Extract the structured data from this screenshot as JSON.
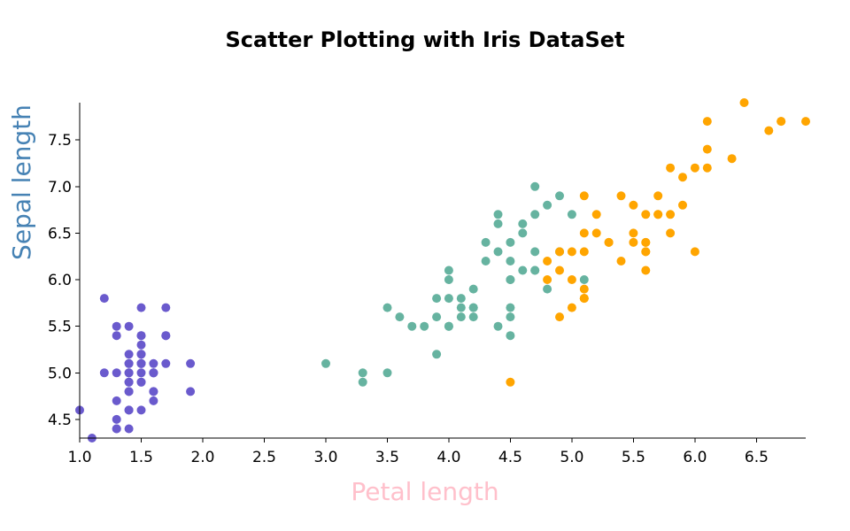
{
  "chart_data": {
    "type": "scatter",
    "title": "Scatter Plotting with Iris DataSet",
    "xlabel": "Petal length",
    "ylabel": "Sepal length",
    "xlim": [
      1.0,
      6.9
    ],
    "ylim": [
      4.3,
      7.9
    ],
    "x_ticks": [
      "1.0",
      "1.5",
      "2.0",
      "2.5",
      "3.0",
      "3.5",
      "4.0",
      "4.5",
      "5.0",
      "5.5",
      "6.0",
      "6.5"
    ],
    "y_ticks": [
      "4.5",
      "5.0",
      "5.5",
      "6.0",
      "6.5",
      "7.0",
      "7.5"
    ],
    "colors": {
      "setosa": "#6a5acd",
      "versicolor": "#66b3a0",
      "virginica": "#ffa500",
      "xlabel": "#ffc0cb",
      "ylabel": "#4682b4"
    },
    "series": [
      {
        "x": [
          1.4,
          1.4,
          1.3,
          1.5,
          1.4,
          1.7,
          1.4,
          1.5,
          1.4,
          1.5,
          1.5,
          1.6,
          1.4,
          1.1,
          1.2,
          1.5,
          1.3,
          1.4,
          1.7,
          1.5,
          1.7,
          1.5,
          1.0,
          1.7,
          1.9,
          1.6,
          1.6,
          1.5,
          1.4,
          1.6,
          1.6,
          1.5,
          1.5,
          1.4,
          1.5,
          1.2,
          1.3,
          1.4,
          1.3,
          1.5,
          1.3,
          1.3,
          1.3,
          1.6,
          1.9,
          1.4,
          1.6,
          1.4,
          1.5,
          1.4
        ],
        "y": [
          5.1,
          4.9,
          4.7,
          4.6,
          5.0,
          5.4,
          4.6,
          5.0,
          4.4,
          4.9,
          5.4,
          4.8,
          4.8,
          4.3,
          5.8,
          5.7,
          5.4,
          5.1,
          5.7,
          5.1,
          5.4,
          5.1,
          4.6,
          5.1,
          4.8,
          5.0,
          5.0,
          5.2,
          5.2,
          4.7,
          4.8,
          5.4,
          5.2,
          5.5,
          4.9,
          5.0,
          5.5,
          4.9,
          4.4,
          5.1,
          5.0,
          4.5,
          4.4,
          5.0,
          5.1,
          4.8,
          5.1,
          4.6,
          5.3,
          5.0
        ]
      },
      {
        "x": [
          4.7,
          4.5,
          4.9,
          4.0,
          4.6,
          4.5,
          4.7,
          3.3,
          4.6,
          3.9,
          3.5,
          4.2,
          4.0,
          4.7,
          3.6,
          4.4,
          4.5,
          4.1,
          4.5,
          3.9,
          4.8,
          4.0,
          4.9,
          4.7,
          4.3,
          4.4,
          4.8,
          5.0,
          4.5,
          3.5,
          3.8,
          3.7,
          3.9,
          5.1,
          4.5,
          4.5,
          4.7,
          4.4,
          4.1,
          4.0,
          4.4,
          4.6,
          4.0,
          3.3,
          4.2,
          4.2,
          4.2,
          4.3,
          3.0,
          4.1
        ],
        "y": [
          7.0,
          6.4,
          6.9,
          5.5,
          6.5,
          5.7,
          6.3,
          4.9,
          6.6,
          5.2,
          5.0,
          5.9,
          6.0,
          6.1,
          5.6,
          6.7,
          5.6,
          5.8,
          6.2,
          5.6,
          5.9,
          6.1,
          6.3,
          6.1,
          6.4,
          6.6,
          6.8,
          6.7,
          6.0,
          5.7,
          5.5,
          5.5,
          5.8,
          6.0,
          5.4,
          6.0,
          6.7,
          6.3,
          5.6,
          5.5,
          5.5,
          6.1,
          5.8,
          5.0,
          5.6,
          5.7,
          5.7,
          6.2,
          5.1,
          5.7
        ]
      },
      {
        "x": [
          6.0,
          5.1,
          5.9,
          5.6,
          5.8,
          6.6,
          4.5,
          6.3,
          5.8,
          6.1,
          5.1,
          5.3,
          5.5,
          5.0,
          5.1,
          5.3,
          5.5,
          6.7,
          6.9,
          5.0,
          5.7,
          4.9,
          6.7,
          4.9,
          5.7,
          6.0,
          4.8,
          4.9,
          5.6,
          5.8,
          6.1,
          6.4,
          5.6,
          5.1,
          5.6,
          6.1,
          5.6,
          5.5,
          4.8,
          5.4,
          5.6,
          5.1,
          5.1,
          5.9,
          5.7,
          5.2,
          5.0,
          5.2,
          5.4,
          5.1
        ],
        "y": [
          6.3,
          5.8,
          7.1,
          6.3,
          6.5,
          7.6,
          4.9,
          7.3,
          6.7,
          7.2,
          6.5,
          6.4,
          6.8,
          5.7,
          5.8,
          6.4,
          6.5,
          7.7,
          7.7,
          6.0,
          6.9,
          5.6,
          7.7,
          6.3,
          6.7,
          7.2,
          6.2,
          6.1,
          6.4,
          7.2,
          7.4,
          7.9,
          6.4,
          6.3,
          6.1,
          7.7,
          6.3,
          6.4,
          6.0,
          6.9,
          6.7,
          6.9,
          5.8,
          6.8,
          6.7,
          6.7,
          6.3,
          6.5,
          6.2,
          5.9
        ]
      }
    ]
  }
}
